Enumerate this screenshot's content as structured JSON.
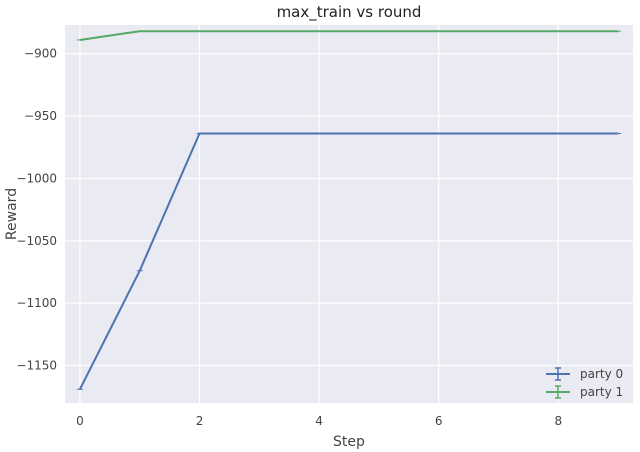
{
  "chart_data": {
    "type": "line",
    "title": "max_train vs round",
    "xlabel": "Step",
    "ylabel": "Reward",
    "xlim": [
      -0.25,
      9.25
    ],
    "ylim": [
      -1180,
      -877
    ],
    "xticks": [
      0,
      2,
      4,
      6,
      8
    ],
    "yticks": [
      -900,
      -950,
      -1000,
      -1050,
      -1100,
      -1150
    ],
    "tick_labels": {
      "x": [
        "0",
        "2",
        "4",
        "6",
        "8"
      ],
      "y": [
        "−900",
        "−950",
        "−1000",
        "−1050",
        "−1100",
        "−1150"
      ]
    },
    "grid": true,
    "legend_position": "bottom-right",
    "series": [
      {
        "name": "party 0",
        "color": "#4c72b0",
        "x": [
          0,
          1,
          2,
          3,
          4,
          5,
          6,
          7,
          8,
          9
        ],
        "y": [
          -1169,
          -1074,
          -964,
          -964,
          -964,
          -964,
          -964,
          -964,
          -964,
          -964
        ],
        "error_bars": true
      },
      {
        "name": "party 1",
        "color": "#55a868",
        "x": [
          0,
          1,
          2,
          3,
          4,
          5,
          6,
          7,
          8,
          9
        ],
        "y": [
          -889,
          -882,
          -882,
          -882,
          -882,
          -882,
          -882,
          -882,
          -882,
          -882
        ],
        "error_bars": true
      }
    ]
  }
}
